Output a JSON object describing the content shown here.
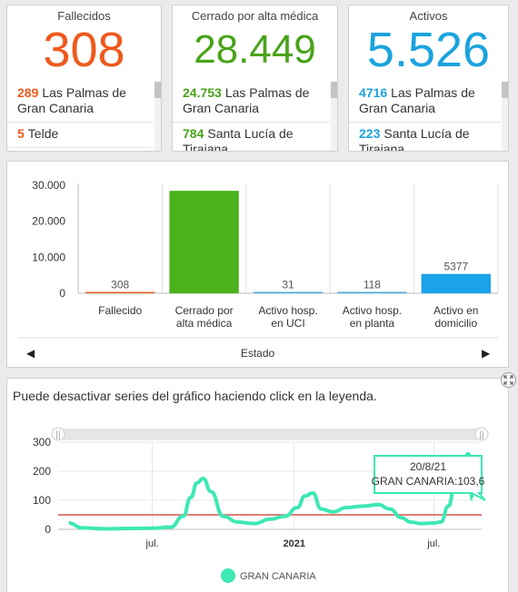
{
  "kpis": [
    {
      "title": "Fallecidos",
      "value": "308",
      "color": "#ee5a1e",
      "items": [
        {
          "count": "289",
          "place": "Las Palmas de Gran Canaria"
        },
        {
          "count": "5",
          "place": "Telde"
        }
      ]
    },
    {
      "title": "Cerrado por alta médica",
      "value": "28.449",
      "color": "#4aa31a",
      "items": [
        {
          "count": "24.753",
          "place": "Las Palmas de Gran Canaria"
        },
        {
          "count": "784",
          "place": "Santa Lucía de Tirajana"
        }
      ]
    },
    {
      "title": "Activos",
      "value": "5.526",
      "color": "#1aa3dd",
      "items": [
        {
          "count": "4716",
          "place": "Las Palmas de Gran Canaria"
        },
        {
          "count": "223",
          "place": "Santa Lucía de Tirajana"
        }
      ]
    }
  ],
  "bar_panel": {
    "xlabel": "Estado",
    "nav_left": "◀",
    "nav_right": "▶"
  },
  "line_panel": {
    "instruction": "Puede desactivar series del gráfico haciendo click en la leyenda.",
    "expand_icon": "expand-icon",
    "tooltip_date": "20/8/21",
    "tooltip_value": "GRAN CANARIA:103,6",
    "legend_label": "GRAN CANARIA",
    "series_color": "#3de8b4",
    "threshold_color": "#d9534f"
  },
  "chart_data": [
    {
      "type": "bar",
      "categories": [
        "Fallecido",
        "Cerrado por alta médica",
        "Activo hosp. en UCI",
        "Activo hosp. en planta",
        "Activo en domicilio"
      ],
      "values": [
        308,
        28449,
        31,
        118,
        5377
      ],
      "data_labels": [
        "308",
        "",
        "31",
        "118",
        "5377"
      ],
      "colors": [
        "#e8601c",
        "#4ab21c",
        "#49a9dd",
        "#49a9dd",
        "#1aa3e8"
      ],
      "yticks": [
        "0",
        "10.000",
        "20.000",
        "30.000"
      ],
      "ylim": [
        0,
        30000
      ],
      "xlabel": "Estado"
    },
    {
      "type": "line",
      "series": [
        {
          "name": "GRAN CANARIA"
        }
      ],
      "x_ticks": [
        "jul.",
        "2021",
        "jul."
      ],
      "yticks": [
        "0",
        "100",
        "200",
        "300"
      ],
      "ylim": [
        0,
        300
      ],
      "x": [
        "2020-03-15",
        "2020-04-01",
        "2020-05-01",
        "2020-06-01",
        "2020-07-01",
        "2020-07-25",
        "2020-08-10",
        "2020-08-20",
        "2020-08-28",
        "2020-09-05",
        "2020-09-15",
        "2020-10-01",
        "2020-10-20",
        "2020-11-10",
        "2020-12-01",
        "2020-12-20",
        "2021-01-05",
        "2021-01-15",
        "2021-01-25",
        "2021-02-05",
        "2021-02-20",
        "2021-03-10",
        "2021-04-01",
        "2021-04-20",
        "2021-05-05",
        "2021-05-20",
        "2021-06-01",
        "2021-06-15",
        "2021-07-01",
        "2021-07-10",
        "2021-07-20",
        "2021-07-28",
        "2021-08-05",
        "2021-08-15",
        "2021-08-20"
      ],
      "y": [
        22,
        5,
        2,
        3,
        4,
        8,
        45,
        110,
        160,
        175,
        130,
        45,
        25,
        20,
        35,
        45,
        75,
        115,
        125,
        70,
        60,
        75,
        80,
        85,
        70,
        40,
        25,
        20,
        22,
        25,
        80,
        150,
        210,
        260,
        104
      ],
      "threshold": 50,
      "tooltip": {
        "date": "20/8/21",
        "value": "GRAN CANARIA:103,6"
      }
    }
  ]
}
